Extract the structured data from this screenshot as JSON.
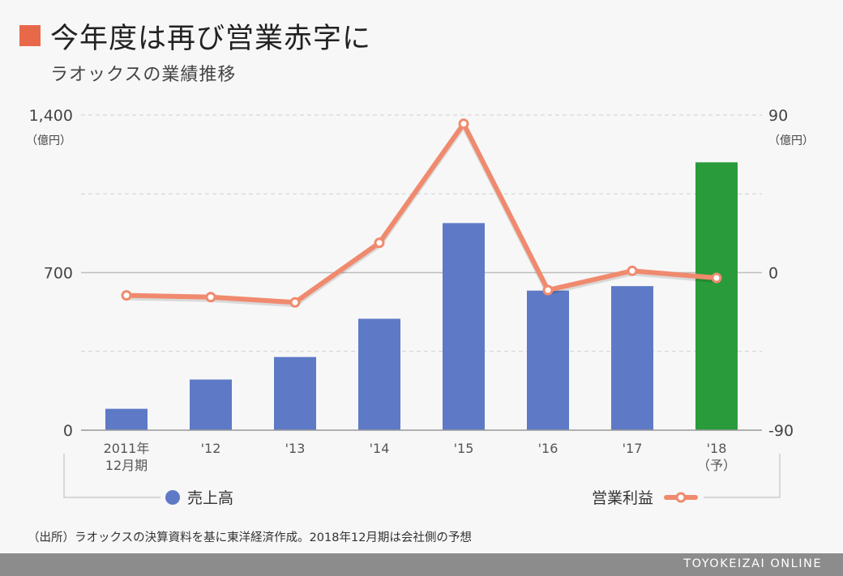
{
  "header": {
    "title": "今年度は再び営業赤字に",
    "subtitle": "ラオックスの業績推移",
    "title_mark_color": "#e8694a"
  },
  "note": "（出所）ラオックスの決算資料を基に東洋経済作成。2018年12月期は会社側の予想",
  "footer": {
    "brand": "TOYOKEIZAI ONLINE"
  },
  "chart_data": {
    "type": "bar",
    "categories": [
      [
        "2011年",
        "12月期"
      ],
      [
        "'12"
      ],
      [
        "'13"
      ],
      [
        "'14"
      ],
      [
        "'15"
      ],
      [
        "'16"
      ],
      [
        "'17"
      ],
      [
        "'18",
        "（予）"
      ]
    ],
    "series": [
      {
        "name": "売上高",
        "type": "bar",
        "axis": "left",
        "values": [
          95,
          225,
          325,
          495,
          920,
          620,
          640,
          1190
        ],
        "color": "#5e7ac6",
        "forecast_color": "#2a9b3a",
        "forecast_index": 7
      },
      {
        "name": "営業利益",
        "type": "line",
        "axis": "right",
        "values": [
          -13,
          -14,
          -17,
          17,
          85,
          -10,
          1,
          -3
        ],
        "color": "#f08a6e"
      }
    ],
    "y_left": {
      "ylim": [
        0,
        1400
      ],
      "ticks": [
        "0",
        "700",
        "1,400"
      ],
      "unit": "（億円）"
    },
    "y_right": {
      "ylim": [
        -90,
        90
      ],
      "ticks": [
        "-90",
        "0",
        "90"
      ],
      "unit": "（億円）"
    },
    "grid": true,
    "legend": "bottom"
  }
}
